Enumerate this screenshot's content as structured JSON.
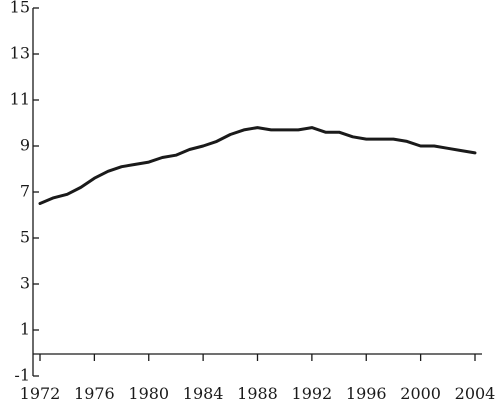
{
  "chart_data": {
    "type": "line",
    "title": "",
    "xlabel": "",
    "ylabel": "",
    "xlim": [
      1972,
      2004
    ],
    "ylim": [
      -1,
      15
    ],
    "x_ticks": [
      1972,
      1976,
      1980,
      1984,
      1988,
      1992,
      1996,
      2000,
      2004
    ],
    "y_ticks": [
      -1,
      1,
      3,
      5,
      7,
      9,
      11,
      13,
      15
    ],
    "grid": false,
    "legend": "none",
    "line_color": "#1a1a1a",
    "series": [
      {
        "x": [
          1972,
          1973,
          1974,
          1975,
          1976,
          1977,
          1978,
          1979,
          1980,
          1981,
          1982,
          1983,
          1984,
          1985,
          1986,
          1987,
          1988,
          1989,
          1990,
          1991,
          1992,
          1993,
          1994,
          1995,
          1996,
          1997,
          1998,
          1999,
          2000,
          2001,
          2002,
          2003,
          2004
        ],
        "values": [
          6.5,
          6.75,
          6.9,
          7.2,
          7.6,
          7.9,
          8.1,
          8.2,
          8.3,
          8.5,
          8.6,
          8.85,
          9.0,
          9.2,
          9.5,
          9.7,
          9.8,
          9.7,
          9.7,
          9.7,
          9.8,
          9.6,
          9.6,
          9.4,
          9.3,
          9.3,
          9.3,
          9.2,
          9.0,
          9.0,
          8.9,
          8.8,
          8.7
        ]
      }
    ]
  }
}
